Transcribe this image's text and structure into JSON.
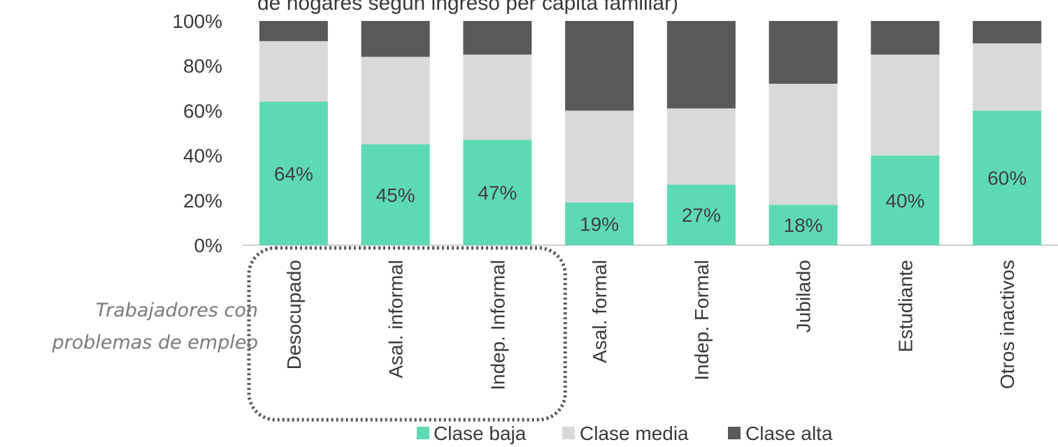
{
  "chart_data": {
    "type": "bar",
    "stacked": true,
    "percent": true,
    "title": "de hogares según  ingreso per cápita familiar)",
    "categories": [
      "Desocupado",
      "Asal. informal",
      "Indep. Informal",
      "Asal. formal",
      "Indep. Formal",
      "Jubilado",
      "Estudiante",
      "Otros inactivos"
    ],
    "series": [
      {
        "name": "Clase baja",
        "color": "#5ddab4",
        "values": [
          64,
          45,
          47,
          19,
          27,
          18,
          40,
          60
        ]
      },
      {
        "name": "Clase media",
        "color": "#d9d9d9",
        "values": [
          27,
          39,
          38,
          41,
          34,
          54,
          45,
          30
        ]
      },
      {
        "name": "Clase alta",
        "color": "#595959",
        "values": [
          9,
          16,
          15,
          40,
          39,
          28,
          15,
          10
        ]
      }
    ],
    "data_labels": [
      "64%",
      "45%",
      "47%",
      "19%",
      "27%",
      "18%",
      "40%",
      "60%"
    ],
    "yticks": [
      "0%",
      "20%",
      "40%",
      "60%",
      "80%",
      "100%"
    ],
    "ylim": [
      0,
      100
    ],
    "legend_position": "bottom",
    "annotation": {
      "lines": [
        "Trabajadores con",
        "problemas de empleo"
      ],
      "highlighted_categories": [
        "Desocupado",
        "Asal. informal",
        "Indep. Informal"
      ]
    }
  }
}
